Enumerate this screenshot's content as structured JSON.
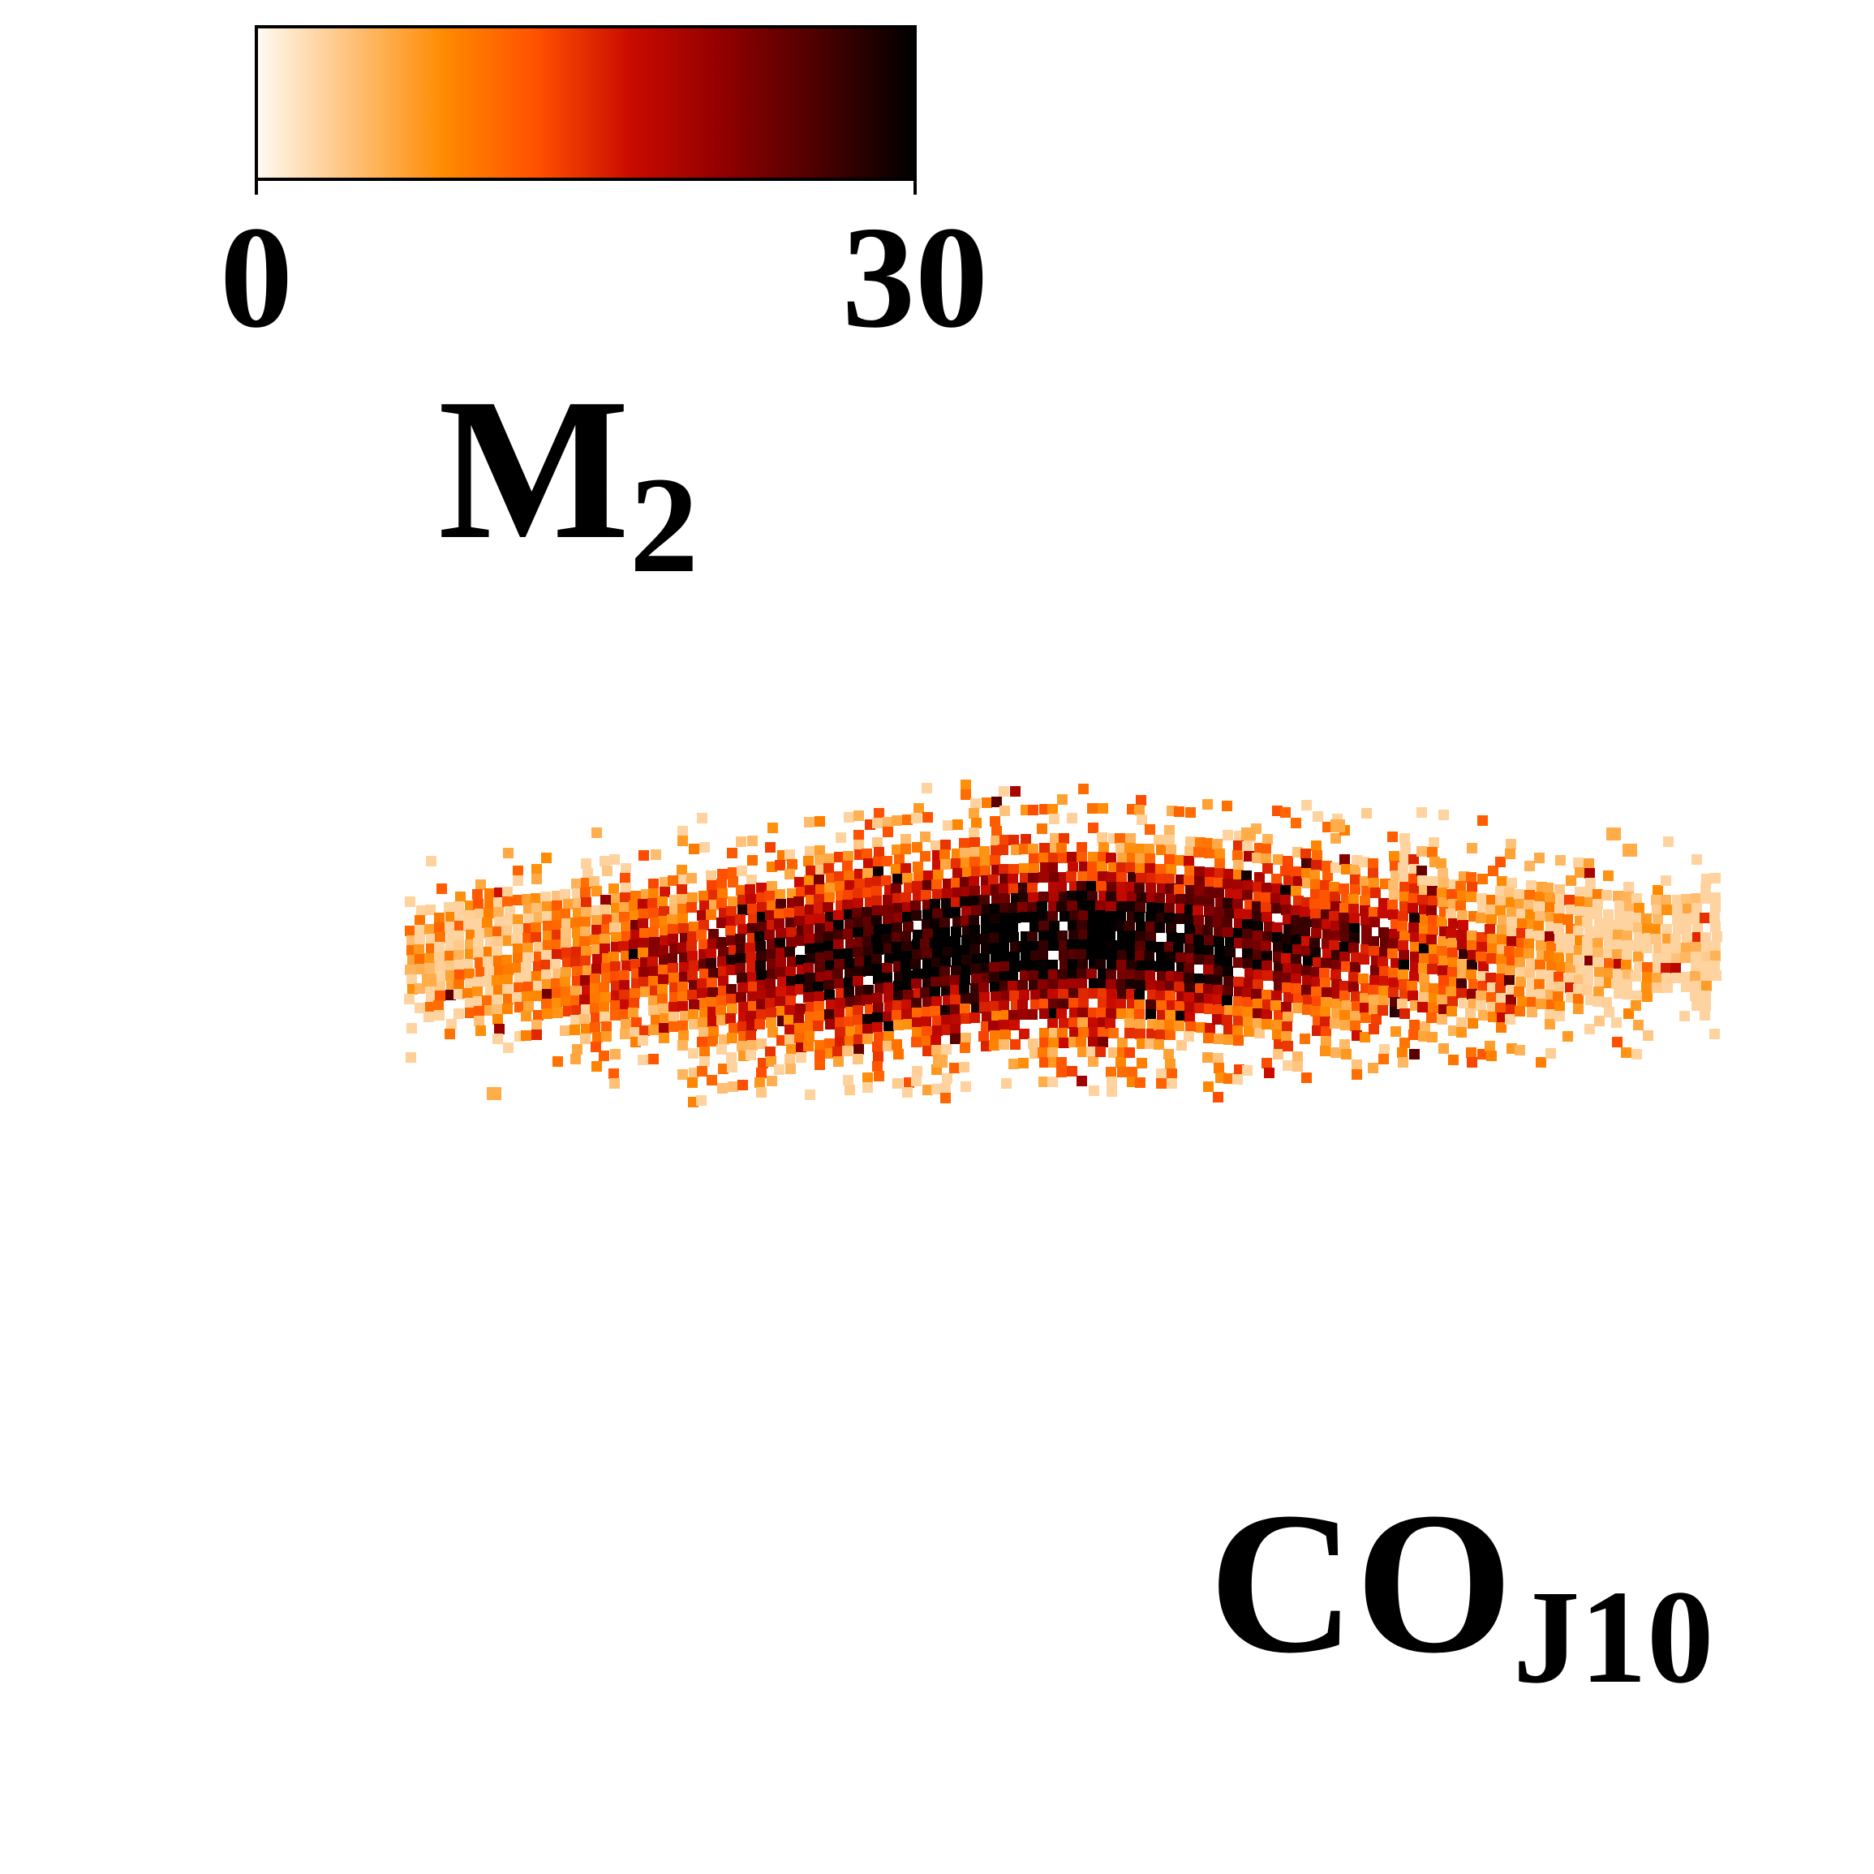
{
  "chart_data": {
    "type": "heatmap",
    "colorbar": {
      "min_label": "0",
      "max_label": "30",
      "range": [
        0,
        30
      ],
      "quantity_label": "M",
      "quantity_subscript": "2",
      "colormap": [
        "#fffaf4",
        "#ffc27a",
        "#ff8a00",
        "#ff4f00",
        "#c80a00",
        "#8f0000",
        "#4a0000",
        "#000000"
      ]
    },
    "panel_label": {
      "main": "CO",
      "subscript": "J10"
    }
  }
}
